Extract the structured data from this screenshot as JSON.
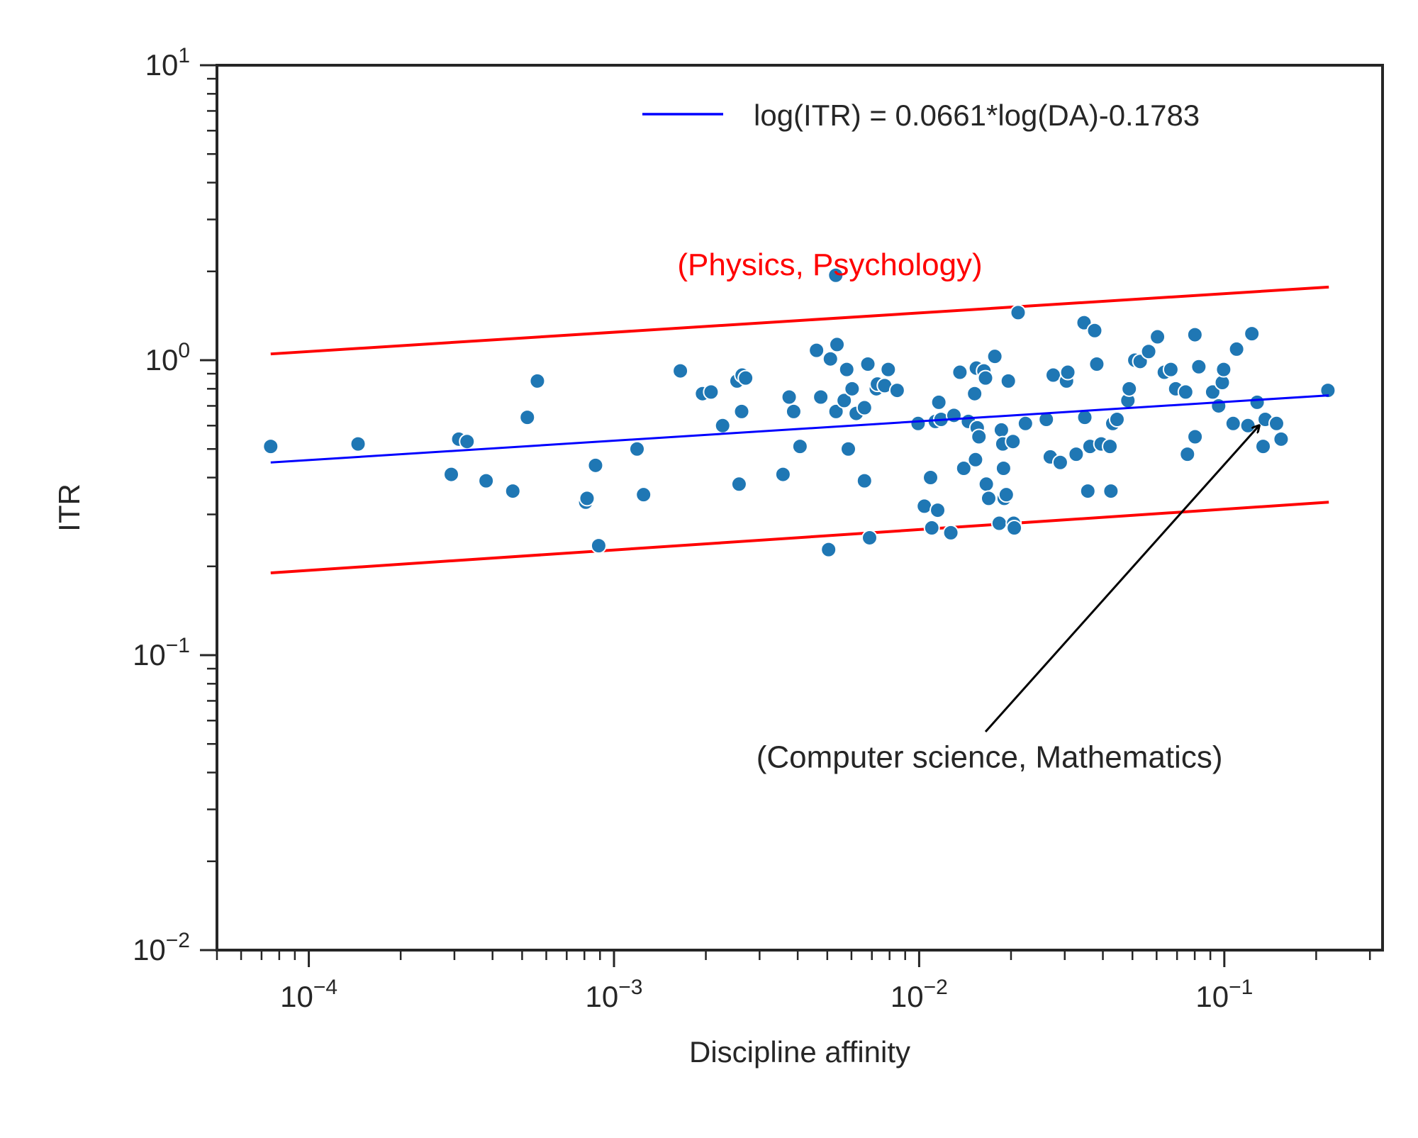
{
  "chart_data": {
    "type": "scatter",
    "title": "",
    "xlabel": "Discipline affinity",
    "ylabel": "ITR",
    "xscale": "log",
    "yscale": "log",
    "xlim": [
      5e-05,
      0.33
    ],
    "ylim": [
      0.01,
      10
    ],
    "grid": false,
    "legend_position": "top-right",
    "x_ticks": [
      {
        "value": 0.0001,
        "base": "10",
        "exp": "−4"
      },
      {
        "value": 0.001,
        "base": "10",
        "exp": "−3"
      },
      {
        "value": 0.01,
        "base": "10",
        "exp": "−2"
      },
      {
        "value": 0.1,
        "base": "10",
        "exp": "−1"
      }
    ],
    "y_ticks": [
      {
        "value": 0.01,
        "base": "10",
        "exp": "−2"
      },
      {
        "value": 0.1,
        "base": "10",
        "exp": "−1"
      },
      {
        "value": 1,
        "base": "10",
        "exp": "0"
      },
      {
        "value": 10,
        "base": "10",
        "exp": "1"
      }
    ],
    "colors": {
      "points": "#1f77b4",
      "fit": "#0000ff",
      "bounds": "#ff0000",
      "arrow": "#000000",
      "highlight_text": "#ff0000"
    },
    "fit_line": {
      "label": "log(ITR) = 0.0661*log(DA)-0.1783",
      "points": [
        [
          7.5e-05,
          0.45
        ],
        [
          0.22,
          0.76
        ]
      ]
    },
    "upper_bound": {
      "points": [
        [
          7.5e-05,
          1.05
        ],
        [
          0.22,
          1.77
        ]
      ]
    },
    "lower_bound": {
      "points": [
        [
          7.5e-05,
          0.19
        ],
        [
          0.22,
          0.33
        ]
      ]
    },
    "annotations": [
      {
        "text": "(Physics, Psychology)",
        "x": 0.0051,
        "y": 2.1,
        "color": "#ff0000",
        "anchor": "middle"
      },
      {
        "text": "(Computer science, Mathematics)",
        "x": 0.017,
        "y": 0.045,
        "color": "#262626",
        "anchor": "middle",
        "arrow_from": [
          0.0165,
          0.055
        ],
        "arrow_to": [
          0.13,
          0.6
        ]
      }
    ],
    "points": [
      [
        7.5e-05,
        0.51
      ],
      [
        0.000145,
        0.52
      ],
      [
        0.000293,
        0.41
      ],
      [
        0.00031,
        0.54
      ],
      [
        0.00033,
        0.53
      ],
      [
        0.000381,
        0.39
      ],
      [
        0.000466,
        0.36
      ],
      [
        0.00052,
        0.64
      ],
      [
        0.000561,
        0.85
      ],
      [
        0.000808,
        0.33
      ],
      [
        0.000816,
        0.34
      ],
      [
        0.00087,
        0.44
      ],
      [
        0.000891,
        0.235
      ],
      [
        0.00119,
        0.5
      ],
      [
        0.00125,
        0.35
      ],
      [
        0.00165,
        0.92
      ],
      [
        0.00195,
        0.77
      ],
      [
        0.00208,
        0.78
      ],
      [
        0.00227,
        0.6
      ],
      [
        0.00253,
        0.85
      ],
      [
        0.00263,
        0.89
      ],
      [
        0.0027,
        0.87
      ],
      [
        0.00262,
        0.67
      ],
      [
        0.00257,
        0.38
      ],
      [
        0.00358,
        0.41
      ],
      [
        0.00375,
        0.75
      ],
      [
        0.00388,
        0.67
      ],
      [
        0.00407,
        0.51
      ],
      [
        0.00461,
        1.08
      ],
      [
        0.00476,
        0.75
      ],
      [
        0.00512,
        1.01
      ],
      [
        0.00505,
        0.228
      ],
      [
        0.00533,
        1.94
      ],
      [
        0.00538,
        1.13
      ],
      [
        0.00534,
        0.67
      ],
      [
        0.00568,
        0.73
      ],
      [
        0.00579,
        0.93
      ],
      [
        0.00586,
        0.5
      ],
      [
        0.00603,
        0.8
      ],
      [
        0.00622,
        0.66
      ],
      [
        0.00662,
        0.69
      ],
      [
        0.00662,
        0.39
      ],
      [
        0.00679,
        0.97
      ],
      [
        0.00688,
        0.25
      ],
      [
        0.00724,
        0.8
      ],
      [
        0.0073,
        0.83
      ],
      [
        0.00771,
        0.82
      ],
      [
        0.00792,
        0.93
      ],
      [
        0.00847,
        0.79
      ],
      [
        0.00992,
        0.61
      ],
      [
        0.0104,
        0.32
      ],
      [
        0.0109,
        0.4
      ],
      [
        0.011,
        0.27
      ],
      [
        0.0113,
        0.62
      ],
      [
        0.0115,
        0.31
      ],
      [
        0.0116,
        0.72
      ],
      [
        0.0118,
        0.63
      ],
      [
        0.0127,
        0.26
      ],
      [
        0.013,
        0.65
      ],
      [
        0.0136,
        0.91
      ],
      [
        0.014,
        0.43
      ],
      [
        0.0145,
        0.62
      ],
      [
        0.0154,
        0.94
      ],
      [
        0.0152,
        0.77
      ],
      [
        0.0153,
        0.46
      ],
      [
        0.0155,
        0.59
      ],
      [
        0.0157,
        0.55
      ],
      [
        0.0163,
        0.92
      ],
      [
        0.0165,
        0.87
      ],
      [
        0.0166,
        0.38
      ],
      [
        0.0169,
        0.34
      ],
      [
        0.0177,
        1.03
      ],
      [
        0.0183,
        0.28
      ],
      [
        0.0186,
        0.58
      ],
      [
        0.0188,
        0.52
      ],
      [
        0.0189,
        0.43
      ],
      [
        0.019,
        0.34
      ],
      [
        0.0193,
        0.35
      ],
      [
        0.0196,
        0.85
      ],
      [
        0.0203,
        0.53
      ],
      [
        0.0204,
        0.28
      ],
      [
        0.0205,
        0.27
      ],
      [
        0.0211,
        1.45
      ],
      [
        0.0223,
        0.61
      ],
      [
        0.0261,
        0.63
      ],
      [
        0.0269,
        0.47
      ],
      [
        0.0275,
        0.89
      ],
      [
        0.029,
        0.45
      ],
      [
        0.0304,
        0.85
      ],
      [
        0.0307,
        0.91
      ],
      [
        0.0327,
        0.48
      ],
      [
        0.0347,
        1.34
      ],
      [
        0.0349,
        0.64
      ],
      [
        0.0357,
        0.36
      ],
      [
        0.0363,
        0.51
      ],
      [
        0.0376,
        1.26
      ],
      [
        0.0382,
        0.97
      ],
      [
        0.0395,
        0.52
      ],
      [
        0.0422,
        0.51
      ],
      [
        0.0425,
        0.36
      ],
      [
        0.0431,
        0.61
      ],
      [
        0.0445,
        0.63
      ],
      [
        0.0483,
        0.73
      ],
      [
        0.0488,
        0.8
      ],
      [
        0.0509,
        1.0
      ],
      [
        0.053,
        0.99
      ],
      [
        0.0565,
        1.07
      ],
      [
        0.0604,
        1.2
      ],
      [
        0.0636,
        0.91
      ],
      [
        0.0668,
        0.93
      ],
      [
        0.0693,
        0.8
      ],
      [
        0.0757,
        0.48
      ],
      [
        0.0747,
        0.78
      ],
      [
        0.0802,
        0.55
      ],
      [
        0.0801,
        1.22
      ],
      [
        0.0825,
        0.95
      ],
      [
        0.0916,
        0.78
      ],
      [
        0.0958,
        0.7
      ],
      [
        0.0985,
        0.84
      ],
      [
        0.0995,
        0.93
      ],
      [
        0.1069,
        0.61
      ],
      [
        0.1097,
        1.09
      ],
      [
        0.1195,
        0.6
      ],
      [
        0.1231,
        1.23
      ],
      [
        0.1281,
        0.72
      ],
      [
        0.1362,
        0.63
      ],
      [
        0.134,
        0.51
      ],
      [
        0.1483,
        0.61
      ],
      [
        0.1535,
        0.54
      ],
      [
        0.2185,
        0.79
      ]
    ]
  }
}
